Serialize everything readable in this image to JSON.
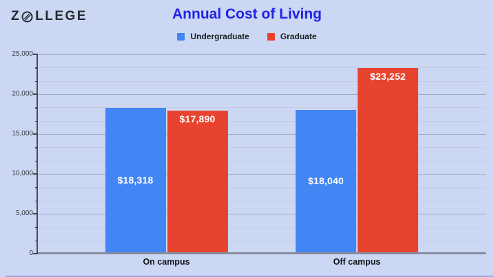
{
  "logo": {
    "prefix": "Z",
    "suffix": "LLEGE"
  },
  "header": {
    "title": "Annual Cost of Living"
  },
  "legend": [
    {
      "label": "Undergraduate",
      "color": "#4285f4"
    },
    {
      "label": "Graduate",
      "color": "#e8432f"
    }
  ],
  "chart_data": {
    "type": "bar",
    "title": "Annual Cost of Living",
    "categories": [
      "On campus",
      "Off campus"
    ],
    "series": [
      {
        "name": "Undergraduate",
        "color": "#4285f4",
        "values": [
          18318,
          18040
        ],
        "data_labels": [
          "$18,318",
          "$18,040"
        ],
        "label_position": "center"
      },
      {
        "name": "Graduate",
        "color": "#e8432f",
        "values": [
          17890,
          23252
        ],
        "data_labels": [
          "$17,890",
          "$23,252"
        ],
        "label_position": "inside-top"
      }
    ],
    "xlabel": "",
    "ylabel": "",
    "ylim": [
      0,
      25000
    ],
    "y_major_ticks": [
      0,
      5000,
      10000,
      15000,
      20000,
      25000
    ],
    "y_tick_labels": [
      "0",
      "5,000",
      "10,000",
      "15,000",
      "20,000",
      "25,000"
    ],
    "minor_gridlines_per_major": 2,
    "grid": true,
    "legend_position": "top"
  }
}
